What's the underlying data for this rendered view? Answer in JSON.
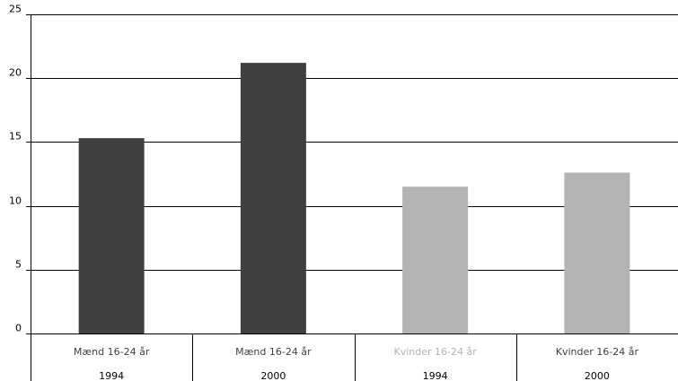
{
  "chart_data": {
    "type": "bar",
    "title": "",
    "xlabel": "",
    "ylabel": "",
    "ylim": [
      0,
      25
    ],
    "yticks": [
      "0",
      "5",
      "10",
      "15",
      "20",
      "25"
    ],
    "grid": true,
    "legend": "none",
    "categories": [
      {
        "line1": "Mænd 16-24 år",
        "line2": "1994",
        "value": 15.3,
        "color": "#404040",
        "label_color": "#404040"
      },
      {
        "line1": "Mænd 16-24 år",
        "line2": "2000",
        "value": 21.2,
        "color": "#404040",
        "label_color": "#404040"
      },
      {
        "line1": "Kvinder 16-24 år",
        "line2": "1994",
        "value": 11.5,
        "color": "#b3b3b3",
        "label_color": "#b3b3b3"
      },
      {
        "line1": "Kvinder 16-24 år",
        "line2": "2000",
        "value": 12.6,
        "color": "#b3b3b3",
        "label_color": "#404040"
      }
    ]
  }
}
